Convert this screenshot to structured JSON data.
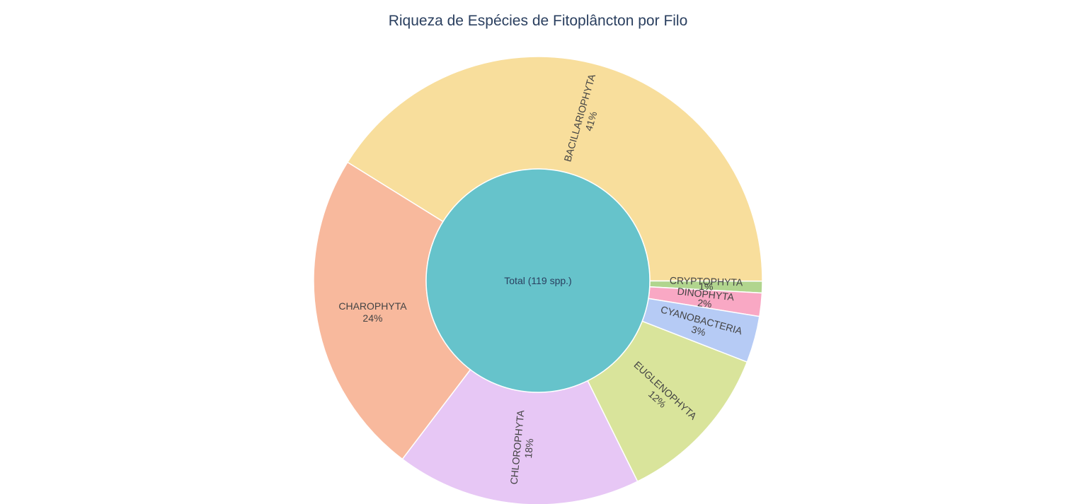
{
  "chart_data": {
    "type": "sunburst",
    "title": "Riqueza de Espécies de Fitoplâncton por Filo",
    "root": {
      "label": "Total (119 spp.)",
      "color": "#66c3cb"
    },
    "segments": [
      {
        "name": "BACILLARIOPHYTA",
        "percent_label": "41%",
        "value": 49,
        "color": "#f8de9c"
      },
      {
        "name": "CRYPTOPHYTA",
        "percent_label": "1%",
        "value": 1,
        "color": "#b1d58e"
      },
      {
        "name": "DINOPHYTA",
        "percent_label": "2%",
        "value": 2,
        "color": "#f9a8c4"
      },
      {
        "name": "CYANOBACTERIA",
        "percent_label": "3%",
        "value": 4,
        "color": "#b6cbf5"
      },
      {
        "name": "EUGLENOPHYTA",
        "percent_label": "12%",
        "value": 14,
        "color": "#d9e49b"
      },
      {
        "name": "CHLOROPHYTA",
        "percent_label": "18%",
        "value": 21,
        "color": "#e7c7f5"
      },
      {
        "name": "CHAROPHYTA",
        "percent_label": "24%",
        "value": 28,
        "color": "#f8b99d"
      }
    ]
  }
}
